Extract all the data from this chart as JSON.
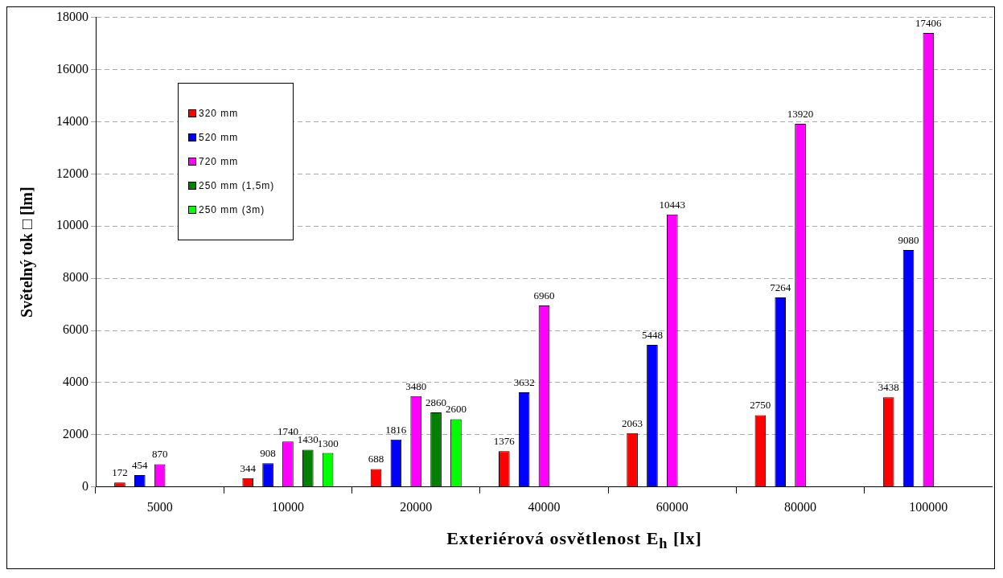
{
  "chart_data": {
    "type": "bar",
    "xlabel": "Exteriérová osvětlenost E$_{h}$ [lx]",
    "ylabel": "Světelný tok □ [lm]",
    "categories": [
      "5000",
      "10000",
      "20000",
      "40000",
      "60000",
      "80000",
      "100000"
    ],
    "series": [
      {
        "name": "320 mm",
        "color": "#ff0000",
        "values": [
          172,
          344,
          688,
          1376,
          2063,
          2750,
          3438
        ]
      },
      {
        "name": "520 mm",
        "color": "#0000ff",
        "values": [
          454,
          908,
          1816,
          3632,
          5448,
          7264,
          9080
        ]
      },
      {
        "name": "720 mm",
        "color": "#ff00ff",
        "values": [
          870,
          1740,
          3480,
          6960,
          10443,
          13920,
          17406
        ]
      },
      {
        "name": "250 mm (1,5m)",
        "color": "#008000",
        "values": [
          null,
          1430,
          2860,
          null,
          null,
          null,
          null
        ]
      },
      {
        "name": "250 mm (3m)",
        "color": "#00ff00",
        "values": [
          null,
          1300,
          2600,
          null,
          null,
          null,
          null
        ]
      }
    ],
    "ylim": [
      0,
      18000
    ],
    "yticks": [
      0,
      2000,
      4000,
      6000,
      8000,
      10000,
      12000,
      14000,
      16000,
      18000
    ],
    "grid": "y",
    "legend": "top left",
    "data_labels": true
  }
}
